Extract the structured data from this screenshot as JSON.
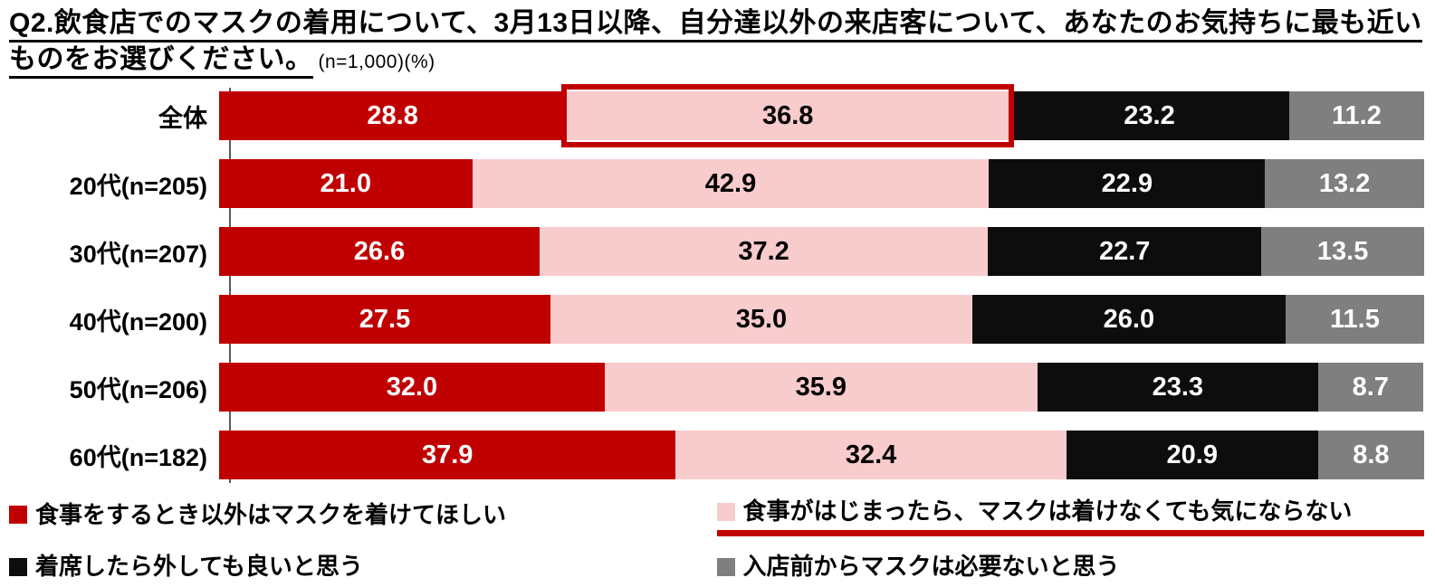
{
  "chart_data": {
    "type": "bar",
    "stacked": true,
    "orientation": "horizontal",
    "title": "Q2.飲食店でのマスクの着用について、3月13日以降、自分達以外の来店客について、あなたのお気持ちに最も近いものをお選びください。",
    "title_note": "(n=1,000)(%)",
    "xlabel": "",
    "ylabel": "",
    "xlim": [
      0,
      100
    ],
    "grid": false,
    "legend_position": "bottom",
    "categories": [
      "全体",
      "20代(n=205)",
      "30代(n=207)",
      "40代(n=200)",
      "50代(n=206)",
      "60代(n=182)"
    ],
    "series": [
      {
        "name": "食事をするとき以外はマスクを着けてほしい",
        "color": "#c00000",
        "text_color": "#ffffff",
        "values": [
          28.8,
          21.0,
          26.6,
          27.5,
          32.0,
          37.9
        ]
      },
      {
        "name": "食事がはじまったら、マスクは着けなくても気にならない",
        "color": "#f8cbcc",
        "text_color": "#000000",
        "values": [
          36.8,
          42.9,
          37.2,
          35.0,
          35.9,
          32.4
        ]
      },
      {
        "name": "着席したら外しても良いと思う",
        "color": "#0d0d0d",
        "text_color": "#ffffff",
        "values": [
          23.2,
          22.9,
          22.7,
          26.0,
          23.3,
          20.9
        ]
      },
      {
        "name": "入店前からマスクは必要ないと思う",
        "color": "#7f7f7f",
        "text_color": "#ffffff",
        "values": [
          11.2,
          13.2,
          13.5,
          11.5,
          8.7,
          8.8
        ]
      }
    ],
    "highlight": {
      "category_index": 0,
      "series_index": 1,
      "border_color": "#c00000"
    },
    "legend_underline_series": 1,
    "legend_underline_color": "#c00000"
  }
}
